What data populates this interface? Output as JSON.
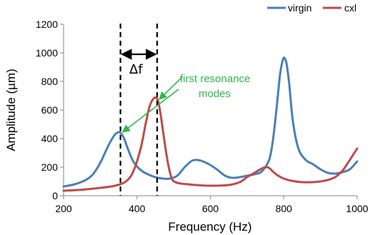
{
  "chart_data": {
    "type": "line",
    "xlabel": "Frequency (Hz)",
    "ylabel": "Amplitude (µm)",
    "xlim": [
      200,
      1000
    ],
    "ylim": [
      0,
      1200
    ],
    "xticks": [
      200,
      400,
      600,
      800,
      1000
    ],
    "yticks": [
      0,
      200,
      400,
      600,
      800,
      1000,
      1200
    ],
    "grid": false,
    "legend_position": "top-right",
    "series": [
      {
        "name": "virgin",
        "color": "#4a7ebb",
        "x": [
          200,
          230,
          260,
          280,
          300,
          320,
          335,
          345,
          355,
          365,
          375,
          390,
          410,
          430,
          450,
          470,
          490,
          510,
          530,
          550,
          565,
          580,
          600,
          620,
          640,
          660,
          680,
          700,
          720,
          740,
          760,
          770,
          780,
          790,
          798,
          803,
          808,
          815,
          825,
          840,
          860,
          880,
          900,
          920,
          940,
          960,
          980,
          1000
        ],
        "y": [
          65,
          80,
          110,
          150,
          230,
          340,
          410,
          440,
          440,
          400,
          330,
          240,
          180,
          150,
          130,
          120,
          120,
          140,
          200,
          245,
          250,
          240,
          215,
          180,
          140,
          125,
          130,
          140,
          150,
          170,
          250,
          380,
          600,
          850,
          955,
          960,
          920,
          780,
          520,
          330,
          250,
          220,
          185,
          160,
          155,
          165,
          185,
          240
        ]
      },
      {
        "name": "cxl",
        "color": "#be4b48",
        "x": [
          200,
          250,
          300,
          340,
          370,
          390,
          410,
          425,
          435,
          445,
          452,
          458,
          465,
          475,
          485,
          495,
          505,
          520,
          540,
          560,
          600,
          650,
          680,
          700,
          720,
          740,
          750,
          760,
          770,
          785,
          800,
          820,
          850,
          880,
          900,
          920,
          940,
          960,
          975,
          990,
          1000
        ],
        "y": [
          35,
          42,
          55,
          70,
          100,
          170,
          330,
          520,
          630,
          680,
          685,
          660,
          560,
          380,
          220,
          120,
          95,
          85,
          80,
          75,
          70,
          75,
          95,
          130,
          160,
          190,
          200,
          195,
          170,
          140,
          120,
          105,
          95,
          95,
          100,
          110,
          130,
          175,
          230,
          290,
          330
        ]
      }
    ],
    "annotations": {
      "delta_label": "Δf",
      "resonance_label_line1": "first resonance",
      "resonance_label_line2": "modes",
      "annotation_color": "#2db84b",
      "dashed_lines_x": [
        355,
        455
      ],
      "arrow_targets": [
        {
          "x": 355,
          "y": 445
        },
        {
          "x": 455,
          "y": 685
        }
      ]
    }
  }
}
